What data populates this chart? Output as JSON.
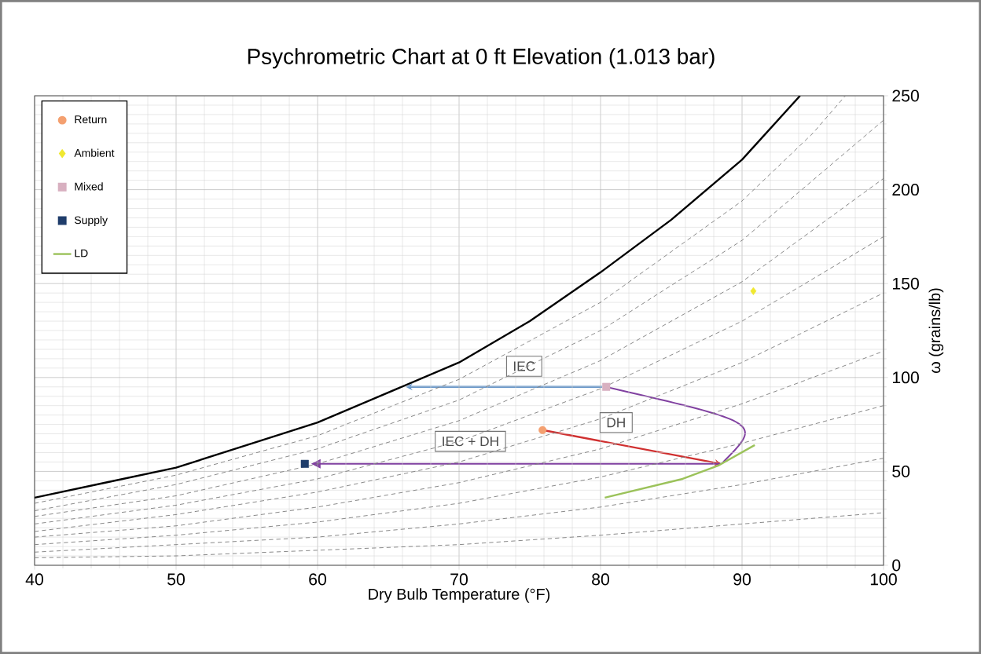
{
  "chart_data": {
    "type": "line",
    "title": "Psychrometric Chart at 0 ft Elevation (1.013 bar)",
    "xlabel": "Dry Bulb Temperature (°F)",
    "ylabel": "ω (grains/lb)",
    "xlim": [
      40,
      100
    ],
    "ylim": [
      0,
      250
    ],
    "xticks": [
      40,
      50,
      60,
      70,
      80,
      90,
      100
    ],
    "yticks": [
      0,
      50,
      100,
      150,
      200,
      250
    ],
    "grid": true,
    "legend": "top left",
    "series": [
      {
        "type": "line",
        "color": "#808080",
        "line_style": "dashed",
        "x": [
          40,
          50,
          60,
          70,
          80,
          90,
          100
        ],
        "values": [
          4,
          5,
          8,
          11,
          16,
          22,
          28
        ]
      },
      {
        "type": "line",
        "color": "#808080",
        "line_style": "dashed",
        "x": [
          40,
          50,
          60,
          70,
          80,
          90,
          100
        ],
        "values": [
          7,
          11,
          15,
          22,
          31,
          43,
          57
        ]
      },
      {
        "type": "line",
        "color": "#808080",
        "line_style": "dashed",
        "x": [
          40,
          50,
          60,
          70,
          80,
          90,
          100
        ],
        "values": [
          11,
          16,
          23,
          33,
          47,
          65,
          85
        ]
      },
      {
        "type": "line",
        "color": "#808080",
        "line_style": "dashed",
        "x": [
          40,
          50,
          60,
          70,
          80,
          90,
          100
        ],
        "values": [
          15,
          21,
          31,
          44,
          62,
          86,
          114
        ]
      },
      {
        "type": "line",
        "color": "#808080",
        "line_style": "dashed",
        "x": [
          40,
          50,
          60,
          70,
          80,
          90,
          100
        ],
        "values": [
          18,
          27,
          39,
          55,
          78,
          108,
          145
        ]
      },
      {
        "type": "line",
        "color": "#808080",
        "line_style": "dashed",
        "x": [
          40,
          50,
          60,
          70,
          80,
          90,
          100
        ],
        "values": [
          22,
          32,
          46,
          66,
          94,
          130,
          175
        ]
      },
      {
        "type": "line",
        "color": "#808080",
        "line_style": "dashed",
        "x": [
          40,
          50,
          60,
          70,
          80,
          90,
          100
        ],
        "values": [
          26,
          37,
          54,
          77,
          109,
          151,
          206
        ]
      },
      {
        "type": "line",
        "color": "#808080",
        "line_style": "dashed",
        "x": [
          40,
          50,
          60,
          70,
          80,
          90,
          100
        ],
        "values": [
          29,
          43,
          62,
          88,
          125,
          173,
          237
        ]
      },
      {
        "type": "line",
        "color": "#808080",
        "line_style": "dashed",
        "x": [
          40,
          50,
          60,
          70,
          80,
          90,
          95,
          97.3
        ],
        "values": [
          33,
          48,
          69,
          99,
          140,
          194,
          230,
          250
        ]
      },
      {
        "type": "line",
        "color": "#000000",
        "line_style": "solid",
        "x": [
          40,
          45,
          50,
          55,
          60,
          65,
          70,
          75,
          80,
          85,
          90,
          94.1
        ],
        "values": [
          36,
          44,
          52,
          64,
          76,
          92,
          108,
          130,
          156,
          184,
          216,
          250
        ]
      },
      {
        "name": "Return",
        "type": "scatter",
        "color": "#f4a070",
        "marker": "circle",
        "x": [
          75.9
        ],
        "values": [
          72
        ]
      },
      {
        "name": "Ambient",
        "type": "scatter",
        "color": "#f0e830",
        "marker": "diamond",
        "x": [
          90.8
        ],
        "values": [
          146
        ]
      },
      {
        "name": "Mixed",
        "type": "scatter",
        "color": "#d8b0c0",
        "marker": "square",
        "x": [
          80.4
        ],
        "values": [
          95
        ]
      },
      {
        "name": "Supply",
        "type": "scatter",
        "color": "#1f3d6b",
        "marker": "square",
        "x": [
          59.1
        ],
        "values": [
          54
        ]
      },
      {
        "name": "LD",
        "type": "line",
        "color": "#9bc25a",
        "line_style": "solid",
        "x": [
          80.3,
          85.8,
          88.3,
          90.9
        ],
        "values": [
          36,
          46,
          53,
          64
        ]
      }
    ],
    "annotations": [
      {
        "text": "IEC",
        "x": 74.6,
        "y": 106
      },
      {
        "text": "DH",
        "x": 81.1,
        "y": 76
      },
      {
        "text": "IEC + DH",
        "x": 70.8,
        "y": 66
      }
    ]
  }
}
